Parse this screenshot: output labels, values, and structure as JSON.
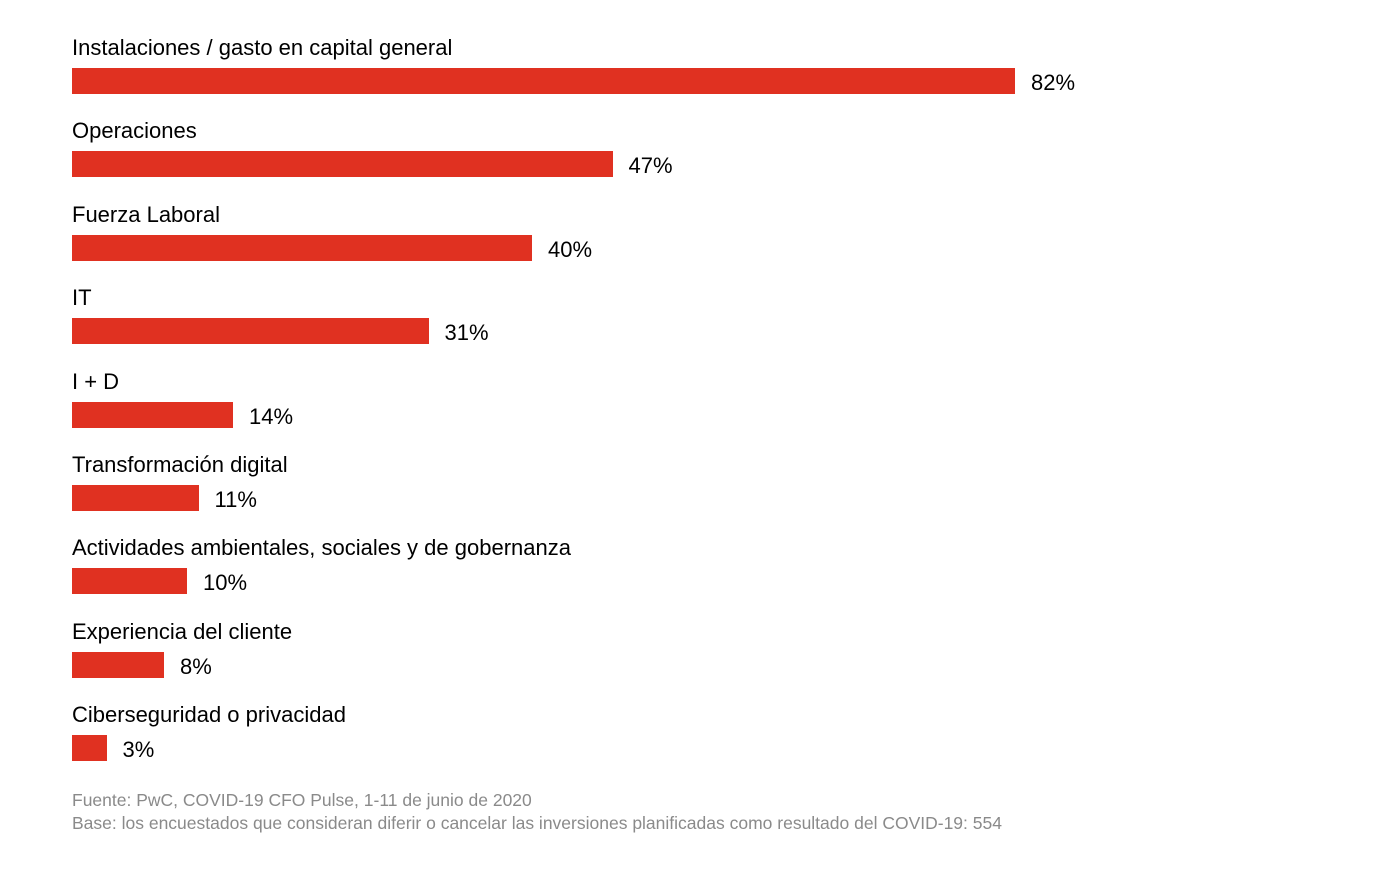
{
  "chart_data": {
    "type": "bar",
    "orientation": "horizontal",
    "categories": [
      "Instalaciones / gasto en capital general",
      "Operaciones",
      "Fuerza Laboral",
      "IT",
      "I + D",
      "Transformación digital",
      "Actividades ambientales, sociales y de gobernanza",
      "Experiencia del cliente",
      "Ciberseguridad o privacidad"
    ],
    "values": [
      82,
      47,
      40,
      31,
      14,
      11,
      10,
      8,
      3
    ],
    "value_labels": [
      "82%",
      "47%",
      "40%",
      "31%",
      "14%",
      "11%",
      "10%",
      "8%",
      "3%"
    ],
    "unit": "%",
    "xlim": [
      0,
      100
    ],
    "grid": false,
    "bar_color": "#e03121"
  },
  "notes": {
    "source": "Fuente: PwC, COVID-19 CFO Pulse, 1-11 de junio de 2020",
    "base": "Base: los encuestados que consideran diferir o cancelar las inversiones planificadas como resultado del COVID-19: 554"
  }
}
